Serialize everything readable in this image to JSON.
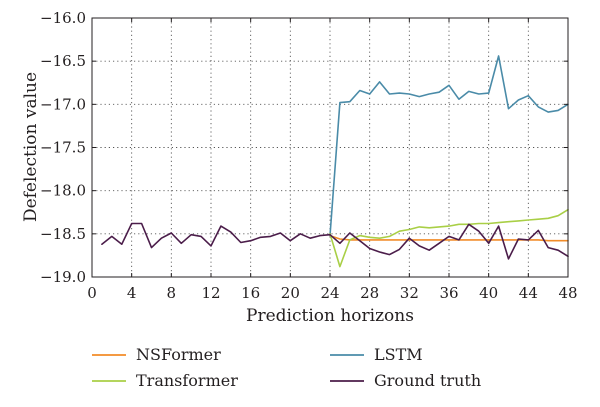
{
  "chart_data": {
    "type": "line",
    "title": "",
    "xlabel": "Prediction horizons",
    "ylabel": "Defelection value",
    "xlim": [
      0,
      48
    ],
    "ylim": [
      -19.0,
      -16.0
    ],
    "x_ticks": [
      0,
      4,
      8,
      12,
      16,
      20,
      24,
      28,
      32,
      36,
      40,
      44,
      48
    ],
    "x_tick_labels": [
      "0",
      "4",
      "8",
      "12",
      "16",
      "20",
      "24",
      "28",
      "32",
      "36",
      "40",
      "44",
      "48"
    ],
    "y_ticks": [
      -16.0,
      -16.5,
      -17.0,
      -17.5,
      -18.0,
      -18.5,
      -19.0
    ],
    "y_tick_labels": [
      "−16.0",
      "−16.5",
      "−17.0",
      "−17.5",
      "−18.0",
      "−18.5",
      "−19.0"
    ],
    "grid": true,
    "legend_position": "bottom",
    "series": [
      {
        "name": "NSFormer",
        "color": "#f28c28",
        "x": [
          24,
          25,
          26,
          27,
          28,
          29,
          30,
          31,
          32,
          33,
          34,
          35,
          36,
          37,
          38,
          39,
          40,
          41,
          42,
          43,
          44,
          45,
          46,
          47,
          48
        ],
        "values": [
          -18.52,
          -18.56,
          -18.57,
          -18.57,
          -18.57,
          -18.57,
          -18.57,
          -18.57,
          -18.57,
          -18.57,
          -18.57,
          -18.57,
          -18.57,
          -18.57,
          -18.57,
          -18.57,
          -18.57,
          -18.57,
          -18.57,
          -18.57,
          -18.57,
          -18.57,
          -18.58,
          -18.58,
          -18.58
        ]
      },
      {
        "name": "LSTM",
        "color": "#4a8ba8",
        "x": [
          24,
          25,
          26,
          27,
          28,
          29,
          30,
          31,
          32,
          33,
          34,
          35,
          36,
          37,
          38,
          39,
          40,
          41,
          42,
          43,
          44,
          45,
          46,
          47,
          48
        ],
        "values": [
          -18.52,
          -16.98,
          -16.97,
          -16.84,
          -16.88,
          -16.74,
          -16.88,
          -16.87,
          -16.88,
          -16.91,
          -16.88,
          -16.86,
          -16.78,
          -16.94,
          -16.85,
          -16.88,
          -16.87,
          -16.44,
          -17.05,
          -16.95,
          -16.9,
          -17.03,
          -17.09,
          -17.07,
          -17.0
        ]
      },
      {
        "name": "Transformer",
        "color": "#a9cf46",
        "x": [
          24,
          25,
          26,
          27,
          28,
          29,
          30,
          31,
          32,
          33,
          34,
          35,
          36,
          37,
          38,
          39,
          40,
          41,
          42,
          43,
          44,
          45,
          46,
          47,
          48
        ],
        "values": [
          -18.5,
          -18.88,
          -18.57,
          -18.52,
          -18.54,
          -18.55,
          -18.53,
          -18.47,
          -18.45,
          -18.42,
          -18.43,
          -18.42,
          -18.41,
          -18.39,
          -18.39,
          -18.38,
          -18.38,
          -18.37,
          -18.36,
          -18.35,
          -18.34,
          -18.33,
          -18.32,
          -18.29,
          -18.22
        ]
      },
      {
        "name": "Ground truth",
        "color": "#4b1d4a",
        "x": [
          1,
          2,
          3,
          4,
          5,
          6,
          7,
          8,
          9,
          10,
          11,
          12,
          13,
          14,
          15,
          16,
          17,
          18,
          19,
          20,
          21,
          22,
          23,
          24,
          25,
          26,
          27,
          28,
          29,
          30,
          31,
          32,
          33,
          34,
          35,
          36,
          37,
          38,
          39,
          40,
          41,
          42,
          43,
          44,
          45,
          46,
          47,
          48
        ],
        "values": [
          -18.62,
          -18.53,
          -18.62,
          -18.38,
          -18.38,
          -18.66,
          -18.55,
          -18.49,
          -18.61,
          -18.51,
          -18.53,
          -18.64,
          -18.41,
          -18.48,
          -18.6,
          -18.58,
          -18.54,
          -18.53,
          -18.49,
          -18.58,
          -18.5,
          -18.55,
          -18.52,
          -18.51,
          -18.61,
          -18.49,
          -18.58,
          -18.67,
          -18.71,
          -18.74,
          -18.68,
          -18.55,
          -18.64,
          -18.69,
          -18.61,
          -18.53,
          -18.57,
          -18.39,
          -18.47,
          -18.61,
          -18.41,
          -18.79,
          -18.56,
          -18.57,
          -18.46,
          -18.66,
          -18.69,
          -18.76
        ]
      }
    ],
    "legend": [
      {
        "label": "NSFormer",
        "color": "#f28c28"
      },
      {
        "label": "LSTM",
        "color": "#4a8ba8"
      },
      {
        "label": "Transformer",
        "color": "#a9cf46"
      },
      {
        "label": "Ground truth",
        "color": "#4b1d4a"
      }
    ]
  }
}
